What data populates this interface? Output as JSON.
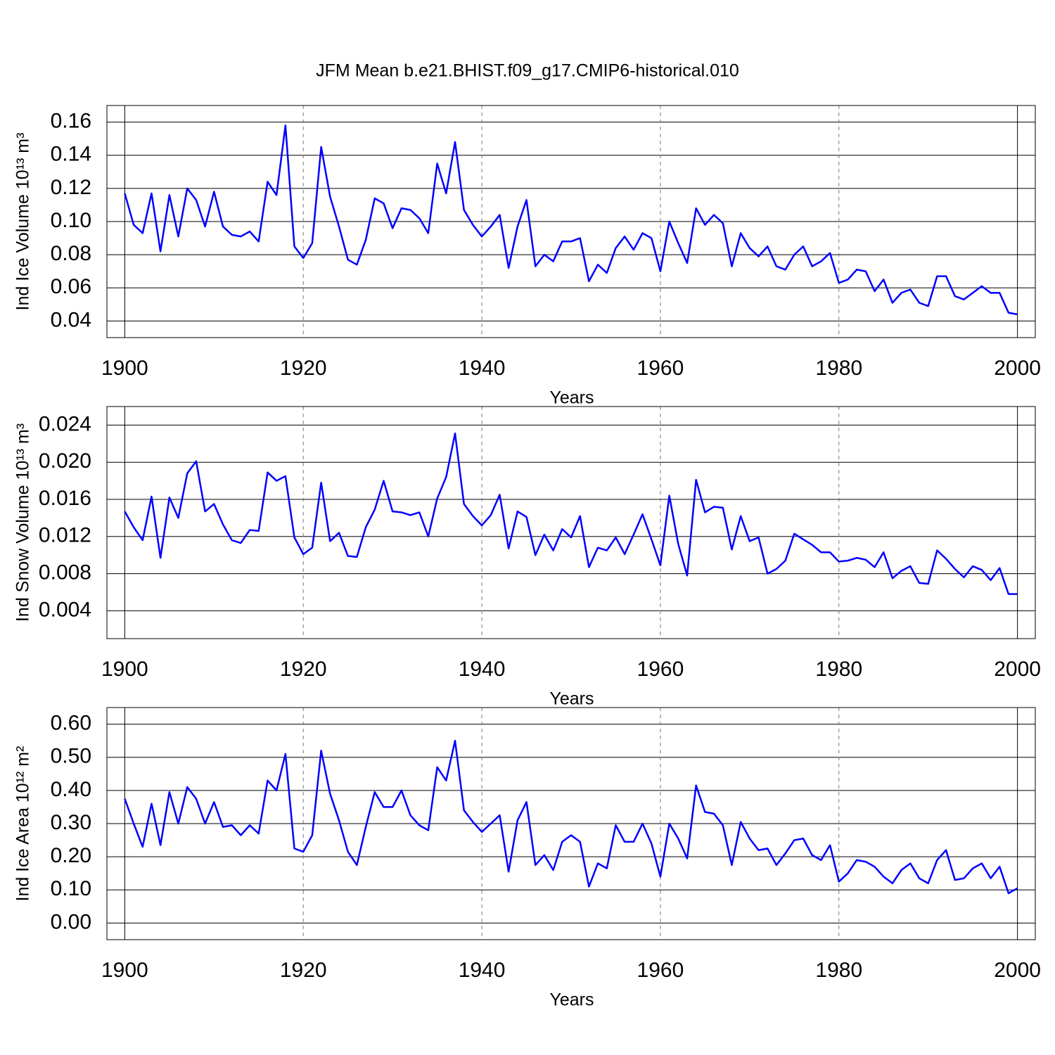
{
  "title": "JFM Mean b.e21.BHIST.f09_g17.CMIP6-historical.010",
  "chart_data": [
    {
      "type": "line",
      "xlabel": "Years",
      "ylabel": "Ind Ice Volume 10¹³ m³",
      "xlim": [
        1898,
        2002
      ],
      "xticks": [
        1900,
        1920,
        1940,
        1960,
        1980,
        2000
      ],
      "ylim": [
        0.03,
        0.17
      ],
      "yticks": [
        0.04,
        0.06,
        0.08,
        {
          "value": 0.1,
          "label": "0.10"
        },
        0.12,
        0.14,
        0.16
      ],
      "grid": true,
      "x": [
        1900,
        1901,
        1902,
        1903,
        1904,
        1905,
        1906,
        1907,
        1908,
        1909,
        1910,
        1911,
        1912,
        1913,
        1914,
        1915,
        1916,
        1917,
        1918,
        1919,
        1920,
        1921,
        1922,
        1923,
        1924,
        1925,
        1926,
        1927,
        1928,
        1929,
        1930,
        1931,
        1932,
        1933,
        1934,
        1935,
        1936,
        1937,
        1938,
        1939,
        1940,
        1941,
        1942,
        1943,
        1944,
        1945,
        1946,
        1947,
        1948,
        1949,
        1950,
        1951,
        1952,
        1953,
        1954,
        1955,
        1956,
        1957,
        1958,
        1959,
        1960,
        1961,
        1962,
        1963,
        1964,
        1965,
        1966,
        1967,
        1968,
        1969,
        1970,
        1971,
        1972,
        1973,
        1974,
        1975,
        1976,
        1977,
        1978,
        1979,
        1980,
        1981,
        1982,
        1983,
        1984,
        1985,
        1986,
        1987,
        1988,
        1989,
        1990,
        1991,
        1992,
        1993,
        1994,
        1995,
        1996,
        1997,
        1998,
        1999,
        2000
      ],
      "series": [
        {
          "color": "#0000ff",
          "values": [
            0.117,
            0.098,
            0.093,
            0.117,
            0.082,
            0.116,
            0.091,
            0.12,
            0.113,
            0.097,
            0.118,
            0.097,
            0.092,
            0.091,
            0.094,
            0.088,
            0.124,
            0.116,
            0.158,
            0.085,
            0.078,
            0.087,
            0.145,
            0.115,
            0.097,
            0.077,
            0.074,
            0.089,
            0.114,
            0.111,
            0.096,
            0.108,
            0.107,
            0.102,
            0.093,
            0.135,
            0.117,
            0.148,
            0.107,
            0.098,
            0.091,
            0.097,
            0.104,
            0.072,
            0.097,
            0.113,
            0.073,
            0.08,
            0.076,
            0.088,
            0.088,
            0.09,
            0.064,
            0.074,
            0.069,
            0.084,
            0.091,
            0.083,
            0.093,
            0.09,
            0.07,
            0.1,
            0.087,
            0.075,
            0.108,
            0.098,
            0.104,
            0.099,
            0.073,
            0.093,
            0.084,
            0.079,
            0.085,
            0.073,
            0.071,
            0.08,
            0.085,
            0.073,
            0.076,
            0.081,
            0.063,
            0.065,
            0.071,
            0.07,
            0.058,
            0.065,
            0.051,
            0.057,
            0.059,
            0.051,
            0.049,
            0.067,
            0.067,
            0.055,
            0.053,
            0.057,
            0.061,
            0.057,
            0.057,
            0.045,
            0.044
          ]
        }
      ]
    },
    {
      "type": "line",
      "xlabel": "Years",
      "ylabel": "Ind Snow Volume 10¹³ m³",
      "xlim": [
        1898,
        2002
      ],
      "xticks": [
        1900,
        1920,
        1940,
        1960,
        1980,
        2000
      ],
      "ylim": [
        0.001,
        0.026
      ],
      "yticks": [
        0.004,
        0.008,
        0.012,
        0.016,
        {
          "value": 0.02,
          "label": "0.020"
        },
        0.024
      ],
      "grid": true,
      "x": [
        1900,
        1901,
        1902,
        1903,
        1904,
        1905,
        1906,
        1907,
        1908,
        1909,
        1910,
        1911,
        1912,
        1913,
        1914,
        1915,
        1916,
        1917,
        1918,
        1919,
        1920,
        1921,
        1922,
        1923,
        1924,
        1925,
        1926,
        1927,
        1928,
        1929,
        1930,
        1931,
        1932,
        1933,
        1934,
        1935,
        1936,
        1937,
        1938,
        1939,
        1940,
        1941,
        1942,
        1943,
        1944,
        1945,
        1946,
        1947,
        1948,
        1949,
        1950,
        1951,
        1952,
        1953,
        1954,
        1955,
        1956,
        1957,
        1958,
        1959,
        1960,
        1961,
        1962,
        1963,
        1964,
        1965,
        1966,
        1967,
        1968,
        1969,
        1970,
        1971,
        1972,
        1973,
        1974,
        1975,
        1976,
        1977,
        1978,
        1979,
        1980,
        1981,
        1982,
        1983,
        1984,
        1985,
        1986,
        1987,
        1988,
        1989,
        1990,
        1991,
        1992,
        1993,
        1994,
        1995,
        1996,
        1997,
        1998,
        1999,
        2000
      ],
      "series": [
        {
          "color": "#0000ff",
          "values": [
            0.0147,
            0.013,
            0.0116,
            0.0163,
            0.0097,
            0.0162,
            0.014,
            0.0188,
            0.0201,
            0.0147,
            0.0155,
            0.0133,
            0.0116,
            0.0113,
            0.0127,
            0.0126,
            0.0189,
            0.018,
            0.0185,
            0.0119,
            0.0101,
            0.0108,
            0.0178,
            0.0115,
            0.0124,
            0.0099,
            0.0098,
            0.013,
            0.0149,
            0.018,
            0.0147,
            0.0146,
            0.0143,
            0.0146,
            0.012,
            0.0161,
            0.0184,
            0.0231,
            0.0155,
            0.0142,
            0.0132,
            0.0143,
            0.0165,
            0.0107,
            0.0147,
            0.0141,
            0.01,
            0.0122,
            0.0105,
            0.0128,
            0.0119,
            0.0142,
            0.0087,
            0.0108,
            0.0105,
            0.0119,
            0.0101,
            0.0122,
            0.0144,
            0.0117,
            0.0089,
            0.0164,
            0.0112,
            0.0078,
            0.0181,
            0.0146,
            0.0152,
            0.0151,
            0.0106,
            0.0142,
            0.0115,
            0.0119,
            0.008,
            0.0085,
            0.0094,
            0.0123,
            0.0117,
            0.0111,
            0.0103,
            0.0103,
            0.0093,
            0.0094,
            0.0097,
            0.0095,
            0.0087,
            0.0103,
            0.0075,
            0.0083,
            0.0088,
            0.007,
            0.0069,
            0.0105,
            0.0096,
            0.0085,
            0.0076,
            0.0088,
            0.0084,
            0.0073,
            0.0086,
            0.0058,
            0.0058
          ]
        }
      ]
    },
    {
      "type": "line",
      "xlabel": "Years",
      "ylabel": "Ind Ice Area 10¹² m²",
      "xlim": [
        1898,
        2002
      ],
      "xticks": [
        1900,
        1920,
        1940,
        1960,
        1980,
        2000
      ],
      "ylim": [
        -0.05,
        0.65
      ],
      "yticks": [
        {
          "value": 0,
          "label": "0.00"
        },
        {
          "value": 0.1,
          "label": "0.10"
        },
        {
          "value": 0.2,
          "label": "0.20"
        },
        {
          "value": 0.3,
          "label": "0.30"
        },
        {
          "value": 0.4,
          "label": "0.40"
        },
        {
          "value": 0.5,
          "label": "0.50"
        },
        {
          "value": 0.6,
          "label": "0.60"
        }
      ],
      "grid": true,
      "x": [
        1900,
        1901,
        1902,
        1903,
        1904,
        1905,
        1906,
        1907,
        1908,
        1909,
        1910,
        1911,
        1912,
        1913,
        1914,
        1915,
        1916,
        1917,
        1918,
        1919,
        1920,
        1921,
        1922,
        1923,
        1924,
        1925,
        1926,
        1927,
        1928,
        1929,
        1930,
        1931,
        1932,
        1933,
        1934,
        1935,
        1936,
        1937,
        1938,
        1939,
        1940,
        1941,
        1942,
        1943,
        1944,
        1945,
        1946,
        1947,
        1948,
        1949,
        1950,
        1951,
        1952,
        1953,
        1954,
        1955,
        1956,
        1957,
        1958,
        1959,
        1960,
        1961,
        1962,
        1963,
        1964,
        1965,
        1966,
        1967,
        1968,
        1969,
        1970,
        1971,
        1972,
        1973,
        1974,
        1975,
        1976,
        1977,
        1978,
        1979,
        1980,
        1981,
        1982,
        1983,
        1984,
        1985,
        1986,
        1987,
        1988,
        1989,
        1990,
        1991,
        1992,
        1993,
        1994,
        1995,
        1996,
        1997,
        1998,
        1999,
        2000
      ],
      "series": [
        {
          "color": "#0000ff",
          "values": [
            0.375,
            0.3,
            0.23,
            0.36,
            0.235,
            0.395,
            0.3,
            0.41,
            0.375,
            0.3,
            0.365,
            0.29,
            0.295,
            0.265,
            0.295,
            0.27,
            0.43,
            0.4,
            0.51,
            0.225,
            0.215,
            0.265,
            0.52,
            0.39,
            0.31,
            0.215,
            0.175,
            0.29,
            0.395,
            0.35,
            0.35,
            0.4,
            0.325,
            0.295,
            0.28,
            0.47,
            0.43,
            0.55,
            0.34,
            0.305,
            0.275,
            0.3,
            0.325,
            0.155,
            0.31,
            0.365,
            0.175,
            0.205,
            0.16,
            0.245,
            0.265,
            0.245,
            0.11,
            0.18,
            0.165,
            0.295,
            0.245,
            0.245,
            0.3,
            0.24,
            0.14,
            0.3,
            0.255,
            0.195,
            0.415,
            0.335,
            0.33,
            0.295,
            0.175,
            0.305,
            0.255,
            0.22,
            0.225,
            0.175,
            0.21,
            0.25,
            0.255,
            0.205,
            0.19,
            0.235,
            0.125,
            0.15,
            0.19,
            0.185,
            0.17,
            0.14,
            0.12,
            0.16,
            0.18,
            0.135,
            0.12,
            0.19,
            0.22,
            0.13,
            0.135,
            0.165,
            0.18,
            0.135,
            0.17,
            0.09,
            0.105
          ]
        }
      ]
    }
  ]
}
